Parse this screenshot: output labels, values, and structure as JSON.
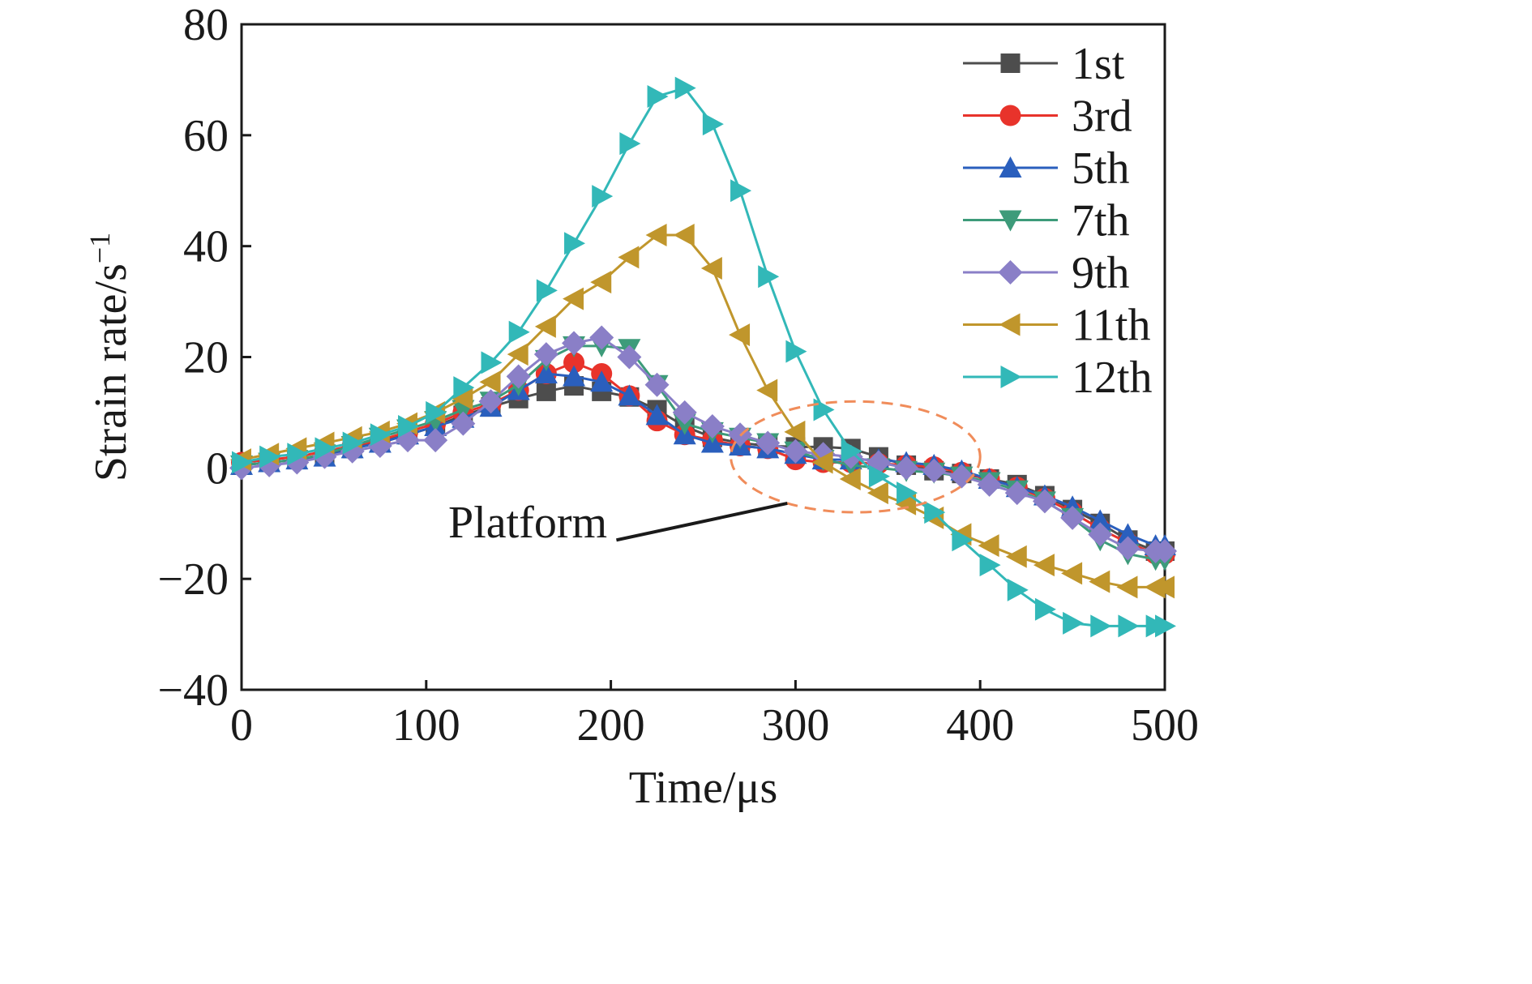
{
  "chart_data": {
    "type": "line",
    "xlabel": "Time/μs",
    "ylabel": "Strain rate/s",
    "ylabel_superscript": "−1",
    "xlim": [
      0,
      500
    ],
    "ylim": [
      -40,
      80
    ],
    "x_ticks": [
      0,
      100,
      200,
      300,
      400,
      500
    ],
    "x_tick_labels": [
      "0",
      "100",
      "200",
      "300",
      "400",
      "500"
    ],
    "y_ticks": [
      -40,
      -20,
      0,
      20,
      40,
      60,
      80
    ],
    "y_tick_labels": [
      "−40",
      "−20",
      "0",
      "20",
      "40",
      "60",
      "80"
    ],
    "grid": false,
    "legend_position": "top-right",
    "x": [
      0,
      15,
      30,
      45,
      60,
      75,
      90,
      105,
      120,
      135,
      150,
      165,
      180,
      195,
      210,
      225,
      240,
      255,
      270,
      285,
      300,
      315,
      330,
      345,
      360,
      375,
      390,
      405,
      420,
      435,
      450,
      465,
      480,
      495,
      500
    ],
    "series": [
      {
        "name": "1st",
        "color": "#4d4d4d",
        "marker": "square",
        "values": [
          0.5,
          1.0,
          1.5,
          2.5,
          3.5,
          5.0,
          6.0,
          7.5,
          9.5,
          11.0,
          12.5,
          13.8,
          14.8,
          13.8,
          12.8,
          10.5,
          7.5,
          5.5,
          4.5,
          4.0,
          3.8,
          3.8,
          3.5,
          2.0,
          0.5,
          -0.5,
          -1.0,
          -2.0,
          -3.0,
          -5.0,
          -7.5,
          -10.0,
          -13.0,
          -15.0,
          -15.0
        ]
      },
      {
        "name": "3rd",
        "color": "#e8332b",
        "marker": "circle",
        "values": [
          1.0,
          1.5,
          2.0,
          3.0,
          4.0,
          5.0,
          6.5,
          8.0,
          10.0,
          11.5,
          14.0,
          17.0,
          19.0,
          17.0,
          13.0,
          8.5,
          6.0,
          5.0,
          4.0,
          3.5,
          1.5,
          1.0,
          1.0,
          0.8,
          0.5,
          0.2,
          -0.8,
          -2.0,
          -3.5,
          -5.5,
          -8.0,
          -11.0,
          -13.5,
          -15.5,
          -15.5
        ]
      },
      {
        "name": "5th",
        "color": "#2a5fbd",
        "marker": "triangle-up",
        "values": [
          0.5,
          1.0,
          1.5,
          2.0,
          3.5,
          4.5,
          6.0,
          7.5,
          9.0,
          11.0,
          14.0,
          17.0,
          16.5,
          15.5,
          13.0,
          9.5,
          6.0,
          4.5,
          4.0,
          3.5,
          2.5,
          1.5,
          1.5,
          1.5,
          1.0,
          0.5,
          -0.5,
          -2.0,
          -3.5,
          -5.0,
          -7.0,
          -9.5,
          -12.0,
          -14.0,
          -14.0
        ]
      },
      {
        "name": "7th",
        "color": "#3d9b7a",
        "marker": "triangle-down",
        "values": [
          0.5,
          1.0,
          1.5,
          2.5,
          4.0,
          5.5,
          7.0,
          8.5,
          10.5,
          12.0,
          15.0,
          19.5,
          22.0,
          22.0,
          21.5,
          15.0,
          8.0,
          6.5,
          5.5,
          4.5,
          3.0,
          1.5,
          0.5,
          0.0,
          -0.5,
          -0.8,
          -1.5,
          -2.5,
          -4.0,
          -6.0,
          -9.0,
          -13.0,
          -15.5,
          -16.5,
          -16.5
        ]
      },
      {
        "name": "9th",
        "color": "#8a7fc7",
        "marker": "diamond",
        "values": [
          0.0,
          0.5,
          1.0,
          2.0,
          3.0,
          4.0,
          5.0,
          5.0,
          8.0,
          12.0,
          16.5,
          20.5,
          22.5,
          23.5,
          20.0,
          15.0,
          10.0,
          7.5,
          6.0,
          4.5,
          3.0,
          2.5,
          2.0,
          1.0,
          0.0,
          -0.5,
          -1.5,
          -3.0,
          -4.5,
          -6.0,
          -9.0,
          -12.0,
          -14.5,
          -15.0,
          -15.0
        ]
      },
      {
        "name": "11th",
        "color": "#c0962c",
        "marker": "triangle-left",
        "values": [
          1.5,
          2.5,
          3.5,
          4.5,
          5.5,
          6.5,
          8.0,
          10.0,
          12.5,
          15.5,
          20.5,
          25.5,
          30.5,
          33.5,
          38.0,
          42.0,
          42.0,
          36.0,
          24.0,
          14.0,
          6.5,
          1.0,
          -2.0,
          -4.5,
          -6.5,
          -9.0,
          -12.0,
          -14.0,
          -16.0,
          -17.5,
          -19.0,
          -20.5,
          -21.5,
          -21.5,
          -21.5
        ]
      },
      {
        "name": "12th",
        "color": "#32b8b8",
        "marker": "triangle-right",
        "values": [
          1.0,
          2.0,
          2.5,
          3.5,
          4.5,
          6.0,
          7.5,
          10.0,
          14.5,
          19.0,
          24.5,
          32.0,
          40.5,
          49.0,
          58.5,
          67.0,
          68.5,
          62.0,
          50.0,
          34.5,
          21.0,
          10.5,
          3.0,
          -1.5,
          -4.5,
          -8.0,
          -13.0,
          -17.5,
          -22.0,
          -25.5,
          -28.0,
          -28.5,
          -28.5,
          -28.5,
          -28.5
        ]
      }
    ],
    "annotations": [
      {
        "text": "Platform",
        "type": "ellipse",
        "target_x": [
          265,
          400
        ],
        "target_y": [
          -8,
          12
        ]
      }
    ]
  }
}
